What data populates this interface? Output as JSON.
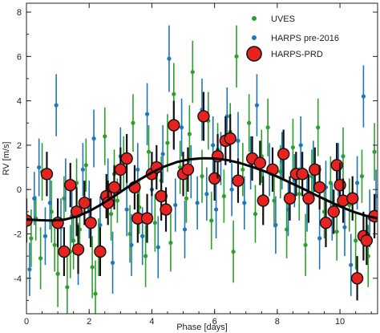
{
  "chart_data": {
    "type": "scatter",
    "title": "",
    "xlabel": "Phase [days]",
    "ylabel": "RV [m/s]",
    "xlim": [
      0,
      11.2
    ],
    "ylim": [
      -5.6,
      8.4
    ],
    "xticks": [
      0,
      2,
      4,
      6,
      8,
      10
    ],
    "yticks": [
      -4,
      -2,
      0,
      2,
      4,
      6,
      8
    ],
    "grid": false,
    "legend_position": "top-right",
    "series": [
      {
        "name": "UVES",
        "color": "#2ca02c",
        "points": [
          {
            "x": 0.15,
            "y": -2.2,
            "err": 1.3
          },
          {
            "x": 0.3,
            "y": -1.3,
            "err": 1.0
          },
          {
            "x": 0.45,
            "y": -3.1,
            "err": 1.4
          },
          {
            "x": 0.5,
            "y": 0.8,
            "err": 1.3
          },
          {
            "x": 0.8,
            "y": -1.0,
            "err": 1.4
          },
          {
            "x": 0.9,
            "y": -2.5,
            "err": 1.2
          },
          {
            "x": 1.0,
            "y": -3.8,
            "err": 1.5
          },
          {
            "x": 1.2,
            "y": -0.4,
            "err": 1.0
          },
          {
            "x": 1.3,
            "y": -4.4,
            "err": 1.5
          },
          {
            "x": 1.4,
            "y": -2.8,
            "err": 1.2
          },
          {
            "x": 1.5,
            "y": -2.3,
            "err": 1.3
          },
          {
            "x": 1.6,
            "y": 0.3,
            "err": 1.1
          },
          {
            "x": 1.7,
            "y": -1.8,
            "err": 1.2
          },
          {
            "x": 1.9,
            "y": 1.1,
            "err": 1.2
          },
          {
            "x": 2.1,
            "y": -3.5,
            "err": 1.4
          },
          {
            "x": 2.2,
            "y": -4.7,
            "err": 1.5
          },
          {
            "x": 2.3,
            "y": -2.6,
            "err": 1.3
          },
          {
            "x": 2.5,
            "y": 2.4,
            "err": 1.3
          },
          {
            "x": 2.7,
            "y": -1.1,
            "err": 1.2
          },
          {
            "x": 2.8,
            "y": 0.7,
            "err": 1.1
          },
          {
            "x": 2.9,
            "y": -0.5,
            "err": 1.0
          },
          {
            "x": 3.1,
            "y": 1.2,
            "err": 1.2
          },
          {
            "x": 3.3,
            "y": -2.0,
            "err": 1.3
          },
          {
            "x": 3.4,
            "y": 3.0,
            "err": 1.3
          },
          {
            "x": 3.6,
            "y": -0.8,
            "err": 1.2
          },
          {
            "x": 3.8,
            "y": -3.0,
            "err": 1.4
          },
          {
            "x": 3.9,
            "y": 1.7,
            "err": 1.2
          },
          {
            "x": 4.1,
            "y": -1.5,
            "err": 1.3
          },
          {
            "x": 4.3,
            "y": 0.4,
            "err": 1.1
          },
          {
            "x": 4.5,
            "y": 2.1,
            "err": 1.3
          },
          {
            "x": 4.6,
            "y": -2.4,
            "err": 1.3
          },
          {
            "x": 4.7,
            "y": 4.3,
            "err": 1.4
          },
          {
            "x": 4.9,
            "y": 1.0,
            "err": 1.2
          },
          {
            "x": 5.1,
            "y": -0.4,
            "err": 1.1
          },
          {
            "x": 5.2,
            "y": 2.5,
            "err": 1.3
          },
          {
            "x": 5.3,
            "y": 5.3,
            "err": 1.4
          },
          {
            "x": 5.6,
            "y": 0.6,
            "err": 1.2
          },
          {
            "x": 5.8,
            "y": 3.1,
            "err": 1.3
          },
          {
            "x": 5.9,
            "y": -1.4,
            "err": 1.3
          },
          {
            "x": 6.1,
            "y": 1.8,
            "err": 1.2
          },
          {
            "x": 6.3,
            "y": -0.3,
            "err": 1.2
          },
          {
            "x": 6.5,
            "y": 2.6,
            "err": 1.3
          },
          {
            "x": 6.6,
            "y": -2.8,
            "err": 1.4
          },
          {
            "x": 6.7,
            "y": 6.0,
            "err": 1.4
          },
          {
            "x": 6.9,
            "y": 0.9,
            "err": 1.2
          },
          {
            "x": 7.1,
            "y": 3.0,
            "err": 1.3
          },
          {
            "x": 7.3,
            "y": -1.1,
            "err": 1.3
          },
          {
            "x": 7.5,
            "y": 1.5,
            "err": 1.2
          },
          {
            "x": 7.7,
            "y": 2.8,
            "err": 1.3
          },
          {
            "x": 7.9,
            "y": -0.5,
            "err": 1.2
          },
          {
            "x": 8.1,
            "y": 0.8,
            "err": 1.2
          },
          {
            "x": 8.3,
            "y": -1.8,
            "err": 1.3
          },
          {
            "x": 8.5,
            "y": 1.9,
            "err": 1.3
          },
          {
            "x": 8.7,
            "y": -0.2,
            "err": 1.2
          },
          {
            "x": 8.9,
            "y": -2.5,
            "err": 1.4
          },
          {
            "x": 9.1,
            "y": 0.6,
            "err": 1.2
          },
          {
            "x": 9.3,
            "y": 2.8,
            "err": 1.3
          },
          {
            "x": 9.5,
            "y": -1.0,
            "err": 1.2
          },
          {
            "x": 9.7,
            "y": 0.3,
            "err": 1.2
          },
          {
            "x": 9.9,
            "y": -1.9,
            "err": 1.3
          },
          {
            "x": 10.1,
            "y": 1.5,
            "err": 1.3
          },
          {
            "x": 10.3,
            "y": -0.7,
            "err": 1.2
          },
          {
            "x": 10.5,
            "y": -2.3,
            "err": 1.3
          },
          {
            "x": 10.7,
            "y": 0.6,
            "err": 1.2
          },
          {
            "x": 10.9,
            "y": -3.0,
            "err": 1.4
          },
          {
            "x": 11.1,
            "y": 1.7,
            "err": 1.3
          }
        ]
      },
      {
        "name": "HARPS pre-2016",
        "color": "#1f77b4",
        "points": [
          {
            "x": 0.1,
            "y": -3.6,
            "err": 1.2
          },
          {
            "x": 0.25,
            "y": -0.4,
            "err": 1.2
          },
          {
            "x": 0.4,
            "y": 1.0,
            "err": 1.3
          },
          {
            "x": 0.6,
            "y": -2.1,
            "err": 1.3
          },
          {
            "x": 0.75,
            "y": -0.6,
            "err": 1.2
          },
          {
            "x": 0.95,
            "y": 3.8,
            "err": 1.4
          },
          {
            "x": 1.1,
            "y": -1.7,
            "err": 1.3
          },
          {
            "x": 1.25,
            "y": 0.2,
            "err": 1.2
          },
          {
            "x": 1.45,
            "y": -1.2,
            "err": 1.2
          },
          {
            "x": 1.65,
            "y": -2.9,
            "err": 1.4
          },
          {
            "x": 1.8,
            "y": 0.9,
            "err": 1.2
          },
          {
            "x": 2.0,
            "y": -0.9,
            "err": 1.3
          },
          {
            "x": 2.15,
            "y": 2.3,
            "err": 1.3
          },
          {
            "x": 2.35,
            "y": -1.6,
            "err": 1.3
          },
          {
            "x": 2.6,
            "y": 0.2,
            "err": 1.2
          },
          {
            "x": 2.75,
            "y": -3.3,
            "err": 1.4
          },
          {
            "x": 3.0,
            "y": 1.5,
            "err": 1.3
          },
          {
            "x": 3.2,
            "y": -0.9,
            "err": 1.2
          },
          {
            "x": 3.35,
            "y": -2.5,
            "err": 1.4
          },
          {
            "x": 3.55,
            "y": 0.9,
            "err": 1.2
          },
          {
            "x": 3.7,
            "y": -2.1,
            "err": 1.3
          },
          {
            "x": 3.85,
            "y": 3.4,
            "err": 1.4
          },
          {
            "x": 4.0,
            "y": 0.0,
            "err": 1.2
          },
          {
            "x": 4.2,
            "y": -2.6,
            "err": 1.4
          },
          {
            "x": 4.35,
            "y": 1.6,
            "err": 1.3
          },
          {
            "x": 4.55,
            "y": 5.9,
            "err": 1.5
          },
          {
            "x": 4.75,
            "y": -0.7,
            "err": 1.2
          },
          {
            "x": 4.95,
            "y": 2.8,
            "err": 1.3
          },
          {
            "x": 5.05,
            "y": -1.8,
            "err": 1.3
          },
          {
            "x": 5.25,
            "y": 0.8,
            "err": 1.2
          },
          {
            "x": 5.45,
            "y": -0.6,
            "err": 1.2
          },
          {
            "x": 5.6,
            "y": 3.6,
            "err": 1.4
          },
          {
            "x": 5.75,
            "y": -0.2,
            "err": 1.2
          },
          {
            "x": 5.95,
            "y": 2.0,
            "err": 1.3
          },
          {
            "x": 6.05,
            "y": -0.9,
            "err": 1.3
          },
          {
            "x": 6.2,
            "y": 1.4,
            "err": 1.2
          },
          {
            "x": 6.4,
            "y": 3.3,
            "err": 1.3
          },
          {
            "x": 6.55,
            "y": 0.0,
            "err": 1.2
          },
          {
            "x": 6.75,
            "y": 2.2,
            "err": 1.3
          },
          {
            "x": 6.95,
            "y": -0.6,
            "err": 1.2
          },
          {
            "x": 7.15,
            "y": 1.2,
            "err": 1.2
          },
          {
            "x": 7.35,
            "y": 3.8,
            "err": 1.4
          },
          {
            "x": 7.55,
            "y": -0.3,
            "err": 1.2
          },
          {
            "x": 7.75,
            "y": 0.9,
            "err": 1.2
          },
          {
            "x": 7.95,
            "y": -1.6,
            "err": 1.3
          },
          {
            "x": 8.15,
            "y": 1.3,
            "err": 1.3
          },
          {
            "x": 8.35,
            "y": -0.9,
            "err": 1.2
          },
          {
            "x": 8.55,
            "y": 0.4,
            "err": 1.2
          },
          {
            "x": 8.75,
            "y": 2.0,
            "err": 1.3
          },
          {
            "x": 8.95,
            "y": -0.6,
            "err": 1.3
          },
          {
            "x": 9.15,
            "y": 1.0,
            "err": 1.2
          },
          {
            "x": 9.35,
            "y": -2.2,
            "err": 1.4
          },
          {
            "x": 9.55,
            "y": 0.1,
            "err": 1.2
          },
          {
            "x": 9.75,
            "y": -1.0,
            "err": 1.3
          },
          {
            "x": 9.95,
            "y": 0.9,
            "err": 1.2
          },
          {
            "x": 10.15,
            "y": -1.7,
            "err": 1.3
          },
          {
            "x": 10.35,
            "y": -3.4,
            "err": 1.4
          },
          {
            "x": 10.55,
            "y": 0.3,
            "err": 1.2
          },
          {
            "x": 10.75,
            "y": 4.2,
            "err": 1.4
          },
          {
            "x": 10.95,
            "y": -1.3,
            "err": 1.3
          },
          {
            "x": 11.15,
            "y": -0.3,
            "err": 1.2
          }
        ]
      },
      {
        "name": "HARPS-PRD",
        "color": "#e8221e",
        "points": [
          {
            "x": 0.0,
            "y": -1.4,
            "err": 1.0
          },
          {
            "x": 0.65,
            "y": 0.7,
            "err": 1.0
          },
          {
            "x": 1.0,
            "y": -1.5,
            "err": 1.1
          },
          {
            "x": 1.2,
            "y": -2.8,
            "err": 1.1
          },
          {
            "x": 1.4,
            "y": 0.2,
            "err": 1.0
          },
          {
            "x": 1.6,
            "y": -1.0,
            "err": 1.1
          },
          {
            "x": 1.65,
            "y": -2.7,
            "err": 1.1
          },
          {
            "x": 1.85,
            "y": -0.6,
            "err": 1.0
          },
          {
            "x": 2.05,
            "y": -1.5,
            "err": 1.1
          },
          {
            "x": 2.35,
            "y": -2.8,
            "err": 1.1
          },
          {
            "x": 2.55,
            "y": -0.3,
            "err": 1.0
          },
          {
            "x": 2.6,
            "y": -0.6,
            "err": 1.0
          },
          {
            "x": 2.8,
            "y": 0.1,
            "err": 1.0
          },
          {
            "x": 3.0,
            "y": 0.9,
            "err": 1.0
          },
          {
            "x": 3.2,
            "y": 1.4,
            "err": 1.1
          },
          {
            "x": 3.45,
            "y": 0.1,
            "err": 1.0
          },
          {
            "x": 3.55,
            "y": -1.3,
            "err": 1.1
          },
          {
            "x": 3.85,
            "y": -1.3,
            "err": 1.1
          },
          {
            "x": 4.0,
            "y": 0.7,
            "err": 1.0
          },
          {
            "x": 4.15,
            "y": 1.0,
            "err": 1.0
          },
          {
            "x": 4.3,
            "y": -0.3,
            "err": 1.1
          },
          {
            "x": 4.45,
            "y": -0.9,
            "err": 1.0
          },
          {
            "x": 4.7,
            "y": 2.9,
            "err": 1.1
          },
          {
            "x": 5.0,
            "y": 0.7,
            "err": 1.0
          },
          {
            "x": 5.15,
            "y": 0.9,
            "err": 1.0
          },
          {
            "x": 5.65,
            "y": 3.3,
            "err": 1.1
          },
          {
            "x": 6.0,
            "y": 0.5,
            "err": 1.0
          },
          {
            "x": 6.1,
            "y": 1.5,
            "err": 1.0
          },
          {
            "x": 6.35,
            "y": 2.2,
            "err": 1.1
          },
          {
            "x": 6.5,
            "y": 2.3,
            "err": 1.1
          },
          {
            "x": 6.75,
            "y": 0.4,
            "err": 1.0
          },
          {
            "x": 7.2,
            "y": 1.4,
            "err": 1.0
          },
          {
            "x": 7.45,
            "y": 1.2,
            "err": 1.0
          },
          {
            "x": 7.55,
            "y": -0.5,
            "err": 1.1
          },
          {
            "x": 7.85,
            "y": 0.9,
            "err": 1.0
          },
          {
            "x": 8.2,
            "y": 1.6,
            "err": 1.1
          },
          {
            "x": 8.4,
            "y": -0.4,
            "err": 1.0
          },
          {
            "x": 8.6,
            "y": 0.7,
            "err": 1.0
          },
          {
            "x": 8.8,
            "y": 0.7,
            "err": 1.0
          },
          {
            "x": 9.0,
            "y": -0.4,
            "err": 1.1
          },
          {
            "x": 9.2,
            "y": 0.9,
            "err": 1.0
          },
          {
            "x": 9.35,
            "y": 0.1,
            "err": 1.0
          },
          {
            "x": 9.55,
            "y": -1.5,
            "err": 1.1
          },
          {
            "x": 9.8,
            "y": -1.0,
            "err": 1.0
          },
          {
            "x": 9.9,
            "y": 1.1,
            "err": 1.0
          },
          {
            "x": 10.0,
            "y": 0.2,
            "err": 1.0
          },
          {
            "x": 10.1,
            "y": -0.5,
            "err": 1.0
          },
          {
            "x": 10.4,
            "y": -0.4,
            "err": 1.0
          },
          {
            "x": 10.55,
            "y": -4.0,
            "err": 1.0
          },
          {
            "x": 10.75,
            "y": -2.1,
            "err": 1.1
          },
          {
            "x": 10.85,
            "y": -2.3,
            "err": 1.1
          },
          {
            "x": 11.1,
            "y": -1.2,
            "err": 1.0
          }
        ]
      }
    ],
    "model_curve": {
      "color": "#000000",
      "points": [
        [
          0.0,
          -1.35
        ],
        [
          0.4,
          -1.38
        ],
        [
          0.8,
          -1.4
        ],
        [
          1.2,
          -1.36
        ],
        [
          1.6,
          -1.22
        ],
        [
          2.0,
          -0.98
        ],
        [
          2.4,
          -0.66
        ],
        [
          2.8,
          -0.3
        ],
        [
          3.2,
          0.08
        ],
        [
          3.6,
          0.44
        ],
        [
          4.0,
          0.77
        ],
        [
          4.4,
          1.04
        ],
        [
          4.8,
          1.24
        ],
        [
          5.2,
          1.36
        ],
        [
          5.6,
          1.41
        ],
        [
          6.0,
          1.4
        ],
        [
          6.4,
          1.33
        ],
        [
          6.8,
          1.2
        ],
        [
          7.2,
          1.02
        ],
        [
          7.6,
          0.82
        ],
        [
          8.0,
          0.58
        ],
        [
          8.4,
          0.32
        ],
        [
          8.8,
          0.05
        ],
        [
          9.2,
          -0.23
        ],
        [
          9.6,
          -0.5
        ],
        [
          10.0,
          -0.76
        ],
        [
          10.4,
          -0.99
        ],
        [
          10.8,
          -1.17
        ],
        [
          11.2,
          -1.3
        ]
      ]
    }
  }
}
